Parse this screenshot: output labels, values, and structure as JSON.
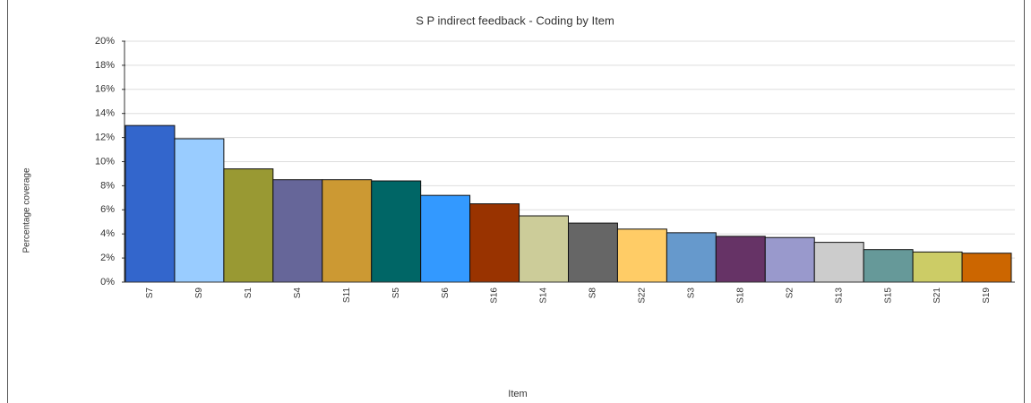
{
  "chart_data": {
    "type": "bar",
    "title": "S P indirect feedback - Coding by Item",
    "ylabel": "Percentage coverage",
    "xlabel": "Item",
    "categories": [
      "S7",
      "S9",
      "S1",
      "S4",
      "S11",
      "S5",
      "S6",
      "S16",
      "S14",
      "S8",
      "S22",
      "S3",
      "S18",
      "S2",
      "S13",
      "S15",
      "S21",
      "S19"
    ],
    "values": [
      13.0,
      11.9,
      9.4,
      8.5,
      8.5,
      8.4,
      7.2,
      6.5,
      5.5,
      4.9,
      4.4,
      4.1,
      3.8,
      3.7,
      3.3,
      2.7,
      2.5,
      2.4
    ],
    "colors": [
      "#3366cc",
      "#99ccff",
      "#999933",
      "#666699",
      "#cc9933",
      "#006666",
      "#3399ff",
      "#993300",
      "#cccc99",
      "#666666",
      "#ffcc66",
      "#6699cc",
      "#663366",
      "#9999cc",
      "#cccccc",
      "#669999",
      "#cccc66",
      "#cc6600"
    ],
    "ylim": [
      0,
      20
    ],
    "yticks": [
      {
        "value": 0,
        "label": "0%"
      },
      {
        "value": 2,
        "label": "2%"
      },
      {
        "value": 4,
        "label": "4%"
      },
      {
        "value": 6,
        "label": "6%"
      },
      {
        "value": 8,
        "label": "8%"
      },
      {
        "value": 10,
        "label": "10%"
      },
      {
        "value": 12,
        "label": "12%"
      },
      {
        "value": 14,
        "label": "14%"
      },
      {
        "value": 16,
        "label": "16%"
      },
      {
        "value": 18,
        "label": "18%"
      },
      {
        "value": 20,
        "label": "20%"
      }
    ],
    "grid": true
  }
}
